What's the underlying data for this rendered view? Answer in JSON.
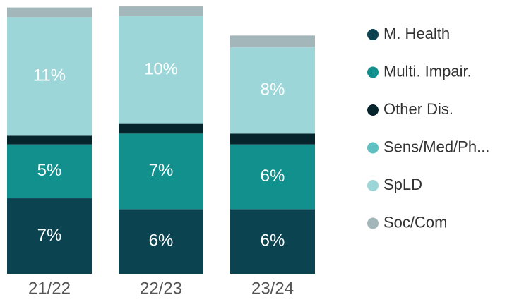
{
  "chart_data": {
    "type": "stacked_bar",
    "categories": [
      "21/22",
      "22/23",
      "23/24"
    ],
    "series": [
      {
        "name": "M. Health",
        "color": "#0b4350",
        "values": [
          7,
          6,
          6
        ],
        "value_labels": [
          "7%",
          "6%",
          "6%"
        ]
      },
      {
        "name": "Multi. Impair.",
        "color": "#12908e",
        "values": [
          5,
          7,
          6
        ],
        "value_labels": [
          "5%",
          "7%",
          "6%"
        ]
      },
      {
        "name": "Other Dis.",
        "color": "#05242c",
        "values": [
          0.8,
          0.9,
          1
        ]
      },
      {
        "name": "Sens/Med/Ph...",
        "color": "#5ec0c0",
        "values": [
          0,
          0,
          0
        ]
      },
      {
        "name": "SpLD",
        "color": "#9dd6d8",
        "values": [
          11,
          10,
          8
        ],
        "value_labels": [
          "11%",
          "10%",
          "8%"
        ]
      },
      {
        "name": "Soc/Com",
        "color": "#a3b7ba",
        "values": [
          0.9,
          0.9,
          1.1
        ]
      }
    ],
    "ylim": [
      0,
      25
    ],
    "legend": "right"
  }
}
